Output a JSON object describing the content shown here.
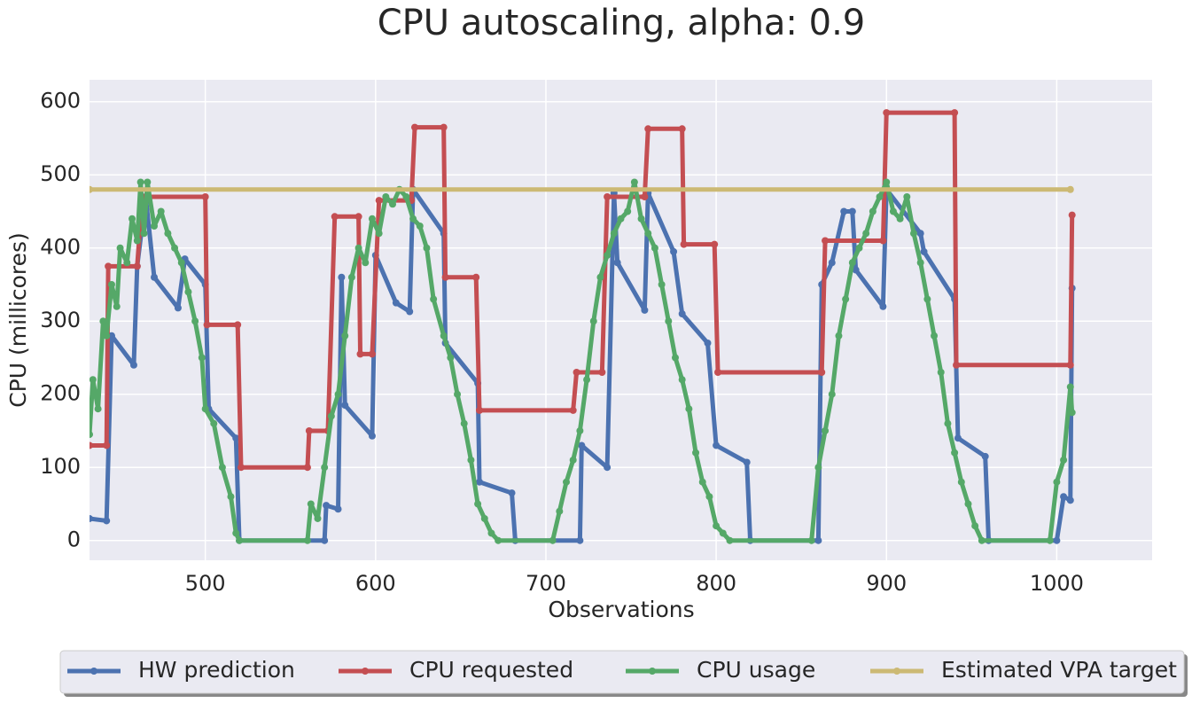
{
  "chart_data": {
    "type": "line",
    "title": "CPU autoscaling, alpha: 0.9",
    "x_label": "Observations",
    "y_label": "CPU (millicores)",
    "xlim": [
      432,
      1056
    ],
    "ylim": [
      -27,
      630
    ],
    "xticks": [
      500,
      600,
      700,
      800,
      900,
      1000
    ],
    "yticks": [
      0,
      100,
      200,
      300,
      400,
      500,
      600
    ],
    "grid": true,
    "legend_position": "bottom",
    "series": [
      {
        "name": "HW prediction",
        "color": "#4c72b0",
        "x": [
          432,
          442,
          445,
          458,
          460,
          465,
          470,
          484,
          488,
          500,
          502,
          518,
          520,
          570,
          571,
          578,
          580,
          582,
          598,
          600,
          612,
          620,
          622,
          640,
          641,
          660,
          661,
          680,
          682,
          720,
          721,
          736,
          740,
          742,
          758,
          760,
          775,
          780,
          795,
          800,
          818,
          820,
          860,
          862,
          868,
          875,
          880,
          882,
          898,
          900,
          920,
          922,
          940,
          942,
          958,
          960,
          1000,
          1004,
          1008,
          1009
        ],
        "values": [
          30,
          27,
          280,
          240,
          375,
          470,
          360,
          318,
          385,
          350,
          180,
          140,
          0,
          0,
          48,
          43,
          360,
          185,
          143,
          390,
          325,
          313,
          480,
          420,
          270,
          215,
          80,
          65,
          0,
          0,
          130,
          100,
          475,
          380,
          315,
          475,
          395,
          310,
          270,
          130,
          107,
          0,
          0,
          350,
          380,
          450,
          450,
          370,
          320,
          480,
          420,
          395,
          330,
          140,
          115,
          0,
          0,
          60,
          55,
          345
        ]
      },
      {
        "name": "CPU requested",
        "color": "#c44e52",
        "x": [
          432,
          442,
          443,
          460,
          463,
          500,
          501,
          519,
          521,
          560,
          561,
          572,
          576,
          590,
          591,
          598,
          602,
          621,
          623,
          640,
          641,
          659,
          661,
          716,
          718,
          733,
          736,
          758,
          760,
          780,
          781,
          799,
          801,
          862,
          864,
          898,
          900,
          940,
          941,
          1008,
          1009
        ],
        "values": [
          130,
          130,
          375,
          375,
          470,
          470,
          295,
          295,
          100,
          100,
          150,
          150,
          443,
          443,
          255,
          255,
          465,
          465,
          565,
          565,
          360,
          360,
          178,
          178,
          230,
          230,
          470,
          470,
          563,
          563,
          405,
          405,
          230,
          230,
          410,
          410,
          585,
          585,
          240,
          240,
          445
        ]
      },
      {
        "name": "CPU usage",
        "color": "#55a868",
        "x": [
          432,
          434,
          437,
          440,
          442,
          445,
          448,
          450,
          454,
          457,
          460,
          462,
          464,
          466,
          470,
          474,
          478,
          482,
          486,
          490,
          494,
          498,
          500,
          505,
          510,
          515,
          518,
          520,
          560,
          562,
          566,
          570,
          574,
          578,
          582,
          586,
          590,
          594,
          598,
          602,
          606,
          610,
          614,
          618,
          622,
          626,
          630,
          634,
          640,
          644,
          648,
          652,
          656,
          660,
          664,
          668,
          672,
          704,
          708,
          712,
          716,
          720,
          724,
          728,
          732,
          736,
          740,
          744,
          748,
          752,
          756,
          760,
          764,
          768,
          772,
          776,
          780,
          784,
          788,
          792,
          796,
          800,
          804,
          808,
          856,
          860,
          864,
          868,
          872,
          876,
          880,
          884,
          888,
          892,
          896,
          900,
          904,
          908,
          912,
          916,
          920,
          924,
          928,
          932,
          936,
          940,
          944,
          948,
          952,
          956,
          996,
          1000,
          1004,
          1008,
          1009
        ],
        "values": [
          145,
          220,
          180,
          300,
          280,
          350,
          320,
          400,
          380,
          440,
          410,
          490,
          420,
          490,
          430,
          450,
          420,
          400,
          380,
          340,
          300,
          250,
          180,
          160,
          100,
          60,
          10,
          0,
          0,
          50,
          30,
          100,
          170,
          200,
          280,
          360,
          400,
          380,
          440,
          420,
          470,
          460,
          480,
          470,
          440,
          430,
          400,
          330,
          280,
          250,
          200,
          160,
          110,
          50,
          30,
          10,
          0,
          0,
          40,
          80,
          110,
          150,
          220,
          300,
          360,
          390,
          420,
          440,
          450,
          490,
          440,
          420,
          400,
          350,
          300,
          250,
          220,
          180,
          120,
          80,
          60,
          20,
          10,
          0,
          0,
          100,
          150,
          200,
          280,
          330,
          380,
          400,
          420,
          450,
          470,
          490,
          450,
          440,
          470,
          420,
          380,
          330,
          280,
          230,
          160,
          120,
          80,
          50,
          20,
          0,
          0,
          80,
          110,
          210,
          175
        ]
      },
      {
        "name": "Estimated VPA target",
        "color": "#ccb974",
        "x": [
          432,
          1008
        ],
        "values": [
          480,
          480
        ]
      }
    ]
  }
}
